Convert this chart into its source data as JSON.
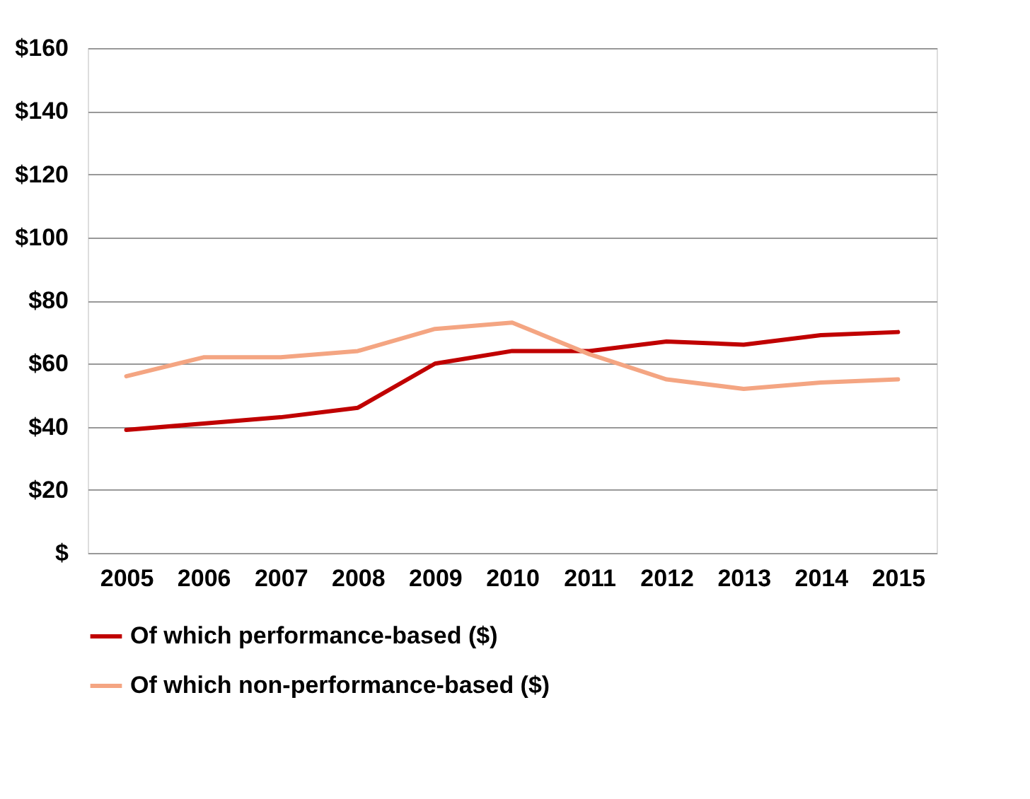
{
  "chart_data": {
    "type": "line",
    "categories": [
      "2005",
      "2006",
      "2007",
      "2008",
      "2009",
      "2010",
      "2011",
      "2012",
      "2013",
      "2014",
      "2015"
    ],
    "series": [
      {
        "name": "Of which performance-based ($)",
        "color": "#c00000",
        "values": [
          39,
          41,
          43,
          46,
          60,
          64,
          64,
          67,
          66,
          69,
          70
        ]
      },
      {
        "name": "Of which non-performance-based ($)",
        "color": "#f4a582",
        "values": [
          56,
          62,
          62,
          64,
          71,
          73,
          63,
          55,
          52,
          54,
          55
        ]
      }
    ],
    "ylim": [
      0,
      160
    ],
    "yticks": [
      {
        "value": 0,
        "label": "$"
      },
      {
        "value": 20,
        "label": "$20"
      },
      {
        "value": 40,
        "label": "$40"
      },
      {
        "value": 60,
        "label": "$60"
      },
      {
        "value": 80,
        "label": "$80"
      },
      {
        "value": 100,
        "label": "$100"
      },
      {
        "value": 120,
        "label": "$120"
      },
      {
        "value": 140,
        "label": "$140"
      },
      {
        "value": 160,
        "label": "$160"
      }
    ],
    "grid": "y",
    "legend": "bottom",
    "marker": "none",
    "line_style": "solid"
  }
}
